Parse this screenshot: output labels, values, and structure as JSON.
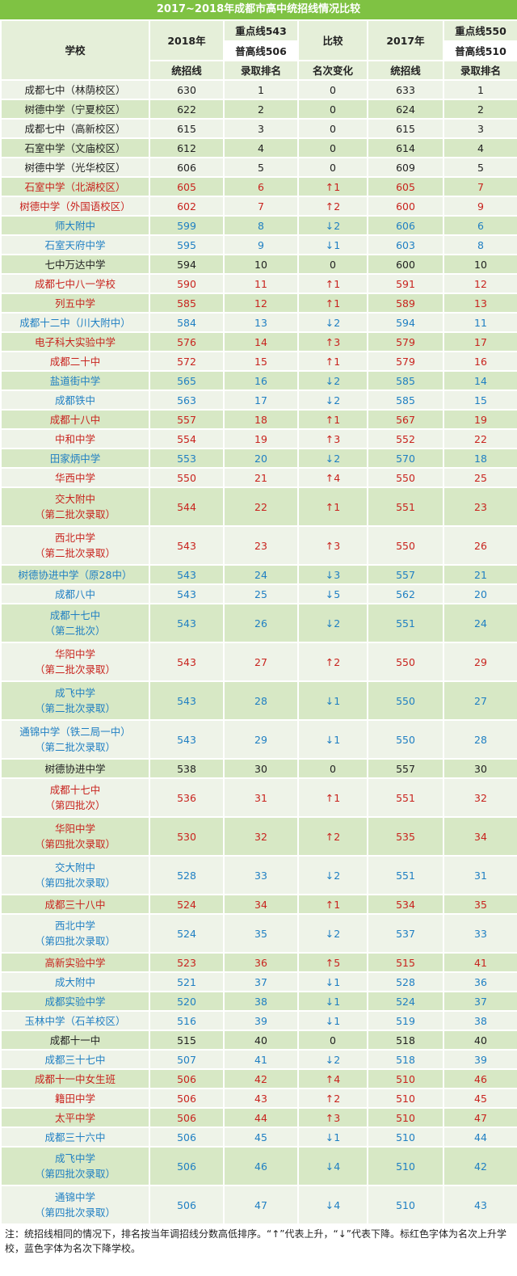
{
  "title": "2017~2018年成都市高中统招线情况比较",
  "header": {
    "school": "学校",
    "y2018": "2018年",
    "y2018_key": "重点线543",
    "y2018_normal": "普高线506",
    "compare": "比较",
    "y2017": "2017年",
    "y2017_key": "重点线550",
    "y2017_normal": "普高线510",
    "tongzhao": "统招线",
    "rank": "录取排名",
    "change": "名次变化"
  },
  "rows": [
    {
      "school": "成都七中（林荫校区）",
      "l2018": "630",
      "r2018": "1",
      "chg": "0",
      "l2017": "633",
      "r2017": "1",
      "color": "black"
    },
    {
      "school": "树德中学（宁夏校区）",
      "l2018": "622",
      "r2018": "2",
      "chg": "0",
      "l2017": "624",
      "r2017": "2",
      "color": "black"
    },
    {
      "school": "成都七中（高新校区）",
      "l2018": "615",
      "r2018": "3",
      "chg": "0",
      "l2017": "615",
      "r2017": "3",
      "color": "black"
    },
    {
      "school": "石室中学（文庙校区）",
      "l2018": "612",
      "r2018": "4",
      "chg": "0",
      "l2017": "614",
      "r2017": "4",
      "color": "black"
    },
    {
      "school": "树德中学（光华校区）",
      "l2018": "606",
      "r2018": "5",
      "chg": "0",
      "l2017": "609",
      "r2017": "5",
      "color": "black"
    },
    {
      "school": "石室中学（北湖校区）",
      "l2018": "605",
      "r2018": "6",
      "chg": "↑1",
      "l2017": "605",
      "r2017": "7",
      "color": "red"
    },
    {
      "school": "树德中学（外国语校区）",
      "l2018": "602",
      "r2018": "7",
      "chg": "↑2",
      "l2017": "600",
      "r2017": "9",
      "color": "red"
    },
    {
      "school": "师大附中",
      "l2018": "599",
      "r2018": "8",
      "chg": "↓2",
      "l2017": "606",
      "r2017": "6",
      "color": "blue"
    },
    {
      "school": "石室天府中学",
      "l2018": "595",
      "r2018": "9",
      "chg": "↓1",
      "l2017": "603",
      "r2017": "8",
      "color": "blue"
    },
    {
      "school": "七中万达中学",
      "l2018": "594",
      "r2018": "10",
      "chg": "0",
      "l2017": "600",
      "r2017": "10",
      "color": "black"
    },
    {
      "school": "成都七中八一学校",
      "l2018": "590",
      "r2018": "11",
      "chg": "↑1",
      "l2017": "591",
      "r2017": "12",
      "color": "red"
    },
    {
      "school": "列五中学",
      "l2018": "585",
      "r2018": "12",
      "chg": "↑1",
      "l2017": "589",
      "r2017": "13",
      "color": "red"
    },
    {
      "school": "成都十二中（川大附中）",
      "l2018": "584",
      "r2018": "13",
      "chg": "↓2",
      "l2017": "594",
      "r2017": "11",
      "color": "blue"
    },
    {
      "school": "电子科大实验中学",
      "l2018": "576",
      "r2018": "14",
      "chg": "↑3",
      "l2017": "579",
      "r2017": "17",
      "color": "red"
    },
    {
      "school": "成都二十中",
      "l2018": "572",
      "r2018": "15",
      "chg": "↑1",
      "l2017": "579",
      "r2017": "16",
      "color": "red"
    },
    {
      "school": "盐道街中学",
      "l2018": "565",
      "r2018": "16",
      "chg": "↓2",
      "l2017": "585",
      "r2017": "14",
      "color": "blue"
    },
    {
      "school": "成都铁中",
      "l2018": "563",
      "r2018": "17",
      "chg": "↓2",
      "l2017": "585",
      "r2017": "15",
      "color": "blue"
    },
    {
      "school": "成都十八中",
      "l2018": "557",
      "r2018": "18",
      "chg": "↑1",
      "l2017": "567",
      "r2017": "19",
      "color": "red"
    },
    {
      "school": "中和中学",
      "l2018": "554",
      "r2018": "19",
      "chg": "↑3",
      "l2017": "552",
      "r2017": "22",
      "color": "red"
    },
    {
      "school": "田家炳中学",
      "l2018": "553",
      "r2018": "20",
      "chg": "↓2",
      "l2017": "570",
      "r2017": "18",
      "color": "blue"
    },
    {
      "school": "华西中学",
      "l2018": "550",
      "r2018": "21",
      "chg": "↑4",
      "l2017": "550",
      "r2017": "25",
      "color": "red"
    },
    {
      "school": "交大附中",
      "school2": "（第二批次录取）",
      "l2018": "544",
      "r2018": "22",
      "chg": "↑1",
      "l2017": "551",
      "r2017": "23",
      "color": "red"
    },
    {
      "school": "西北中学",
      "school2": "（第二批次录取）",
      "l2018": "543",
      "r2018": "23",
      "chg": "↑3",
      "l2017": "550",
      "r2017": "26",
      "color": "red"
    },
    {
      "school": "树德协进中学（原28中）",
      "l2018": "543",
      "r2018": "24",
      "chg": "↓3",
      "l2017": "557",
      "r2017": "21",
      "color": "blue"
    },
    {
      "school": "成都八中",
      "l2018": "543",
      "r2018": "25",
      "chg": "↓5",
      "l2017": "562",
      "r2017": "20",
      "color": "blue"
    },
    {
      "school": "成都十七中",
      "school2": "（第二批次）",
      "l2018": "543",
      "r2018": "26",
      "chg": "↓2",
      "l2017": "551",
      "r2017": "24",
      "color": "blue"
    },
    {
      "school": "华阳中学",
      "school2": "（第二批次录取）",
      "l2018": "543",
      "r2018": "27",
      "chg": "↑2",
      "l2017": "550",
      "r2017": "29",
      "color": "red"
    },
    {
      "school": "成飞中学",
      "school2": "（第二批次录取）",
      "l2018": "543",
      "r2018": "28",
      "chg": "↓1",
      "l2017": "550",
      "r2017": "27",
      "color": "blue"
    },
    {
      "school": "通锦中学（铁二局一中）",
      "school2": "（第二批次录取）",
      "l2018": "543",
      "r2018": "29",
      "chg": "↓1",
      "l2017": "550",
      "r2017": "28",
      "color": "blue"
    },
    {
      "school": "树德协进中学",
      "l2018": "538",
      "r2018": "30",
      "chg": "0",
      "l2017": "557",
      "r2017": "30",
      "color": "black"
    },
    {
      "school": "成都十七中",
      "school2": "（第四批次）",
      "l2018": "536",
      "r2018": "31",
      "chg": "↑1",
      "l2017": "551",
      "r2017": "32",
      "color": "red"
    },
    {
      "school": "华阳中学",
      "school2": "（第四批次录取）",
      "l2018": "530",
      "r2018": "32",
      "chg": "↑2",
      "l2017": "535",
      "r2017": "34",
      "color": "red"
    },
    {
      "school": "交大附中",
      "school2": "（第四批次录取）",
      "l2018": "528",
      "r2018": "33",
      "chg": "↓2",
      "l2017": "551",
      "r2017": "31",
      "color": "blue"
    },
    {
      "school": "成都三十八中",
      "l2018": "524",
      "r2018": "34",
      "chg": "↑1",
      "l2017": "534",
      "r2017": "35",
      "color": "red"
    },
    {
      "school": "西北中学",
      "school2": "（第四批次录取）",
      "l2018": "524",
      "r2018": "35",
      "chg": "↓2",
      "l2017": "537",
      "r2017": "33",
      "color": "blue"
    },
    {
      "school": "高新实验中学",
      "l2018": "523",
      "r2018": "36",
      "chg": "↑5",
      "l2017": "515",
      "r2017": "41",
      "color": "red"
    },
    {
      "school": "成大附中",
      "l2018": "521",
      "r2018": "37",
      "chg": "↓1",
      "l2017": "528",
      "r2017": "36",
      "color": "blue"
    },
    {
      "school": "成都实验中学",
      "l2018": "520",
      "r2018": "38",
      "chg": "↓1",
      "l2017": "524",
      "r2017": "37",
      "color": "blue"
    },
    {
      "school": "玉林中学（石羊校区）",
      "l2018": "516",
      "r2018": "39",
      "chg": "↓1",
      "l2017": "519",
      "r2017": "38",
      "color": "blue"
    },
    {
      "school": "成都十一中",
      "l2018": "515",
      "r2018": "40",
      "chg": "0",
      "l2017": "518",
      "r2017": "40",
      "color": "black"
    },
    {
      "school": "成都三十七中",
      "l2018": "507",
      "r2018": "41",
      "chg": "↓2",
      "l2017": "518",
      "r2017": "39",
      "color": "blue"
    },
    {
      "school": "成都十一中女生班",
      "l2018": "506",
      "r2018": "42",
      "chg": "↑4",
      "l2017": "510",
      "r2017": "46",
      "color": "red"
    },
    {
      "school": "籍田中学",
      "l2018": "506",
      "r2018": "43",
      "chg": "↑2",
      "l2017": "510",
      "r2017": "45",
      "color": "red"
    },
    {
      "school": "太平中学",
      "l2018": "506",
      "r2018": "44",
      "chg": "↑3",
      "l2017": "510",
      "r2017": "47",
      "color": "red"
    },
    {
      "school": "成都三十六中",
      "l2018": "506",
      "r2018": "45",
      "chg": "↓1",
      "l2017": "510",
      "r2017": "44",
      "color": "blue"
    },
    {
      "school": "成飞中学",
      "school2": "（第四批次录取）",
      "l2018": "506",
      "r2018": "46",
      "chg": "↓4",
      "l2017": "510",
      "r2017": "42",
      "color": "blue"
    },
    {
      "school": "通锦中学",
      "school2": "（第四批次录取）",
      "l2018": "506",
      "r2018": "47",
      "chg": "↓4",
      "l2017": "510",
      "r2017": "43",
      "color": "blue"
    }
  ],
  "note": "注：统招线相同的情况下，排名按当年调招线分数高低排序。“↑”代表上升，“↓”代表下降。标红色字体为名次上升学校，蓝色字体为名次下降学校。"
}
